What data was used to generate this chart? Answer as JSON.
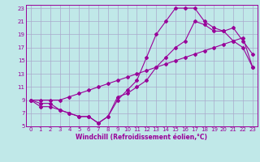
{
  "xlabel": "Windchill (Refroidissement éolien,°C)",
  "bg_color": "#c0e8e8",
  "line_color": "#990099",
  "grid_color": "#aaaacc",
  "xlim": [
    -0.5,
    23.5
  ],
  "ylim": [
    5,
    23.5
  ],
  "xticks": [
    0,
    1,
    2,
    3,
    4,
    5,
    6,
    7,
    8,
    9,
    10,
    11,
    12,
    13,
    14,
    15,
    16,
    17,
    18,
    19,
    20,
    21,
    22,
    23
  ],
  "yticks": [
    5,
    7,
    9,
    11,
    13,
    15,
    17,
    19,
    21,
    23
  ],
  "line1_x": [
    0,
    1,
    2,
    3,
    4,
    5,
    6,
    7,
    8,
    9,
    10,
    11,
    12,
    13,
    14,
    15,
    16,
    17,
    18,
    19,
    20,
    21,
    22,
    23
  ],
  "line1_y": [
    9,
    8,
    8,
    7.5,
    7,
    6.5,
    6.5,
    5.5,
    6.5,
    9.5,
    10,
    11,
    12,
    14,
    15.5,
    17,
    18,
    21,
    20.5,
    19.5,
    19.5,
    20,
    18,
    16
  ],
  "line2_x": [
    0,
    1,
    2,
    3,
    4,
    5,
    6,
    7,
    8,
    9,
    10,
    11,
    12,
    13,
    14,
    15,
    16,
    17,
    18,
    19,
    20,
    21,
    22,
    23
  ],
  "line2_y": [
    9,
    9,
    9,
    9,
    9.5,
    10,
    10.5,
    11,
    11.5,
    12,
    12.5,
    13,
    13.5,
    14,
    14.5,
    15,
    15.5,
    16,
    16.5,
    17,
    17.5,
    18,
    18.5,
    14
  ],
  "line3_x": [
    0,
    1,
    2,
    3,
    4,
    5,
    6,
    7,
    8,
    9,
    10,
    11,
    12,
    13,
    14,
    15,
    16,
    17,
    18,
    19,
    20,
    21,
    22,
    23
  ],
  "line3_y": [
    9,
    8.5,
    8.5,
    7.5,
    7,
    6.5,
    6.5,
    5.5,
    6.5,
    9,
    10.5,
    12,
    15.5,
    19,
    21,
    23,
    23,
    23,
    21,
    20,
    19.5,
    18,
    17,
    14
  ],
  "tick_fontsize": 5.0,
  "xlabel_fontsize": 5.5,
  "marker_size": 2.0,
  "linewidth": 0.8
}
